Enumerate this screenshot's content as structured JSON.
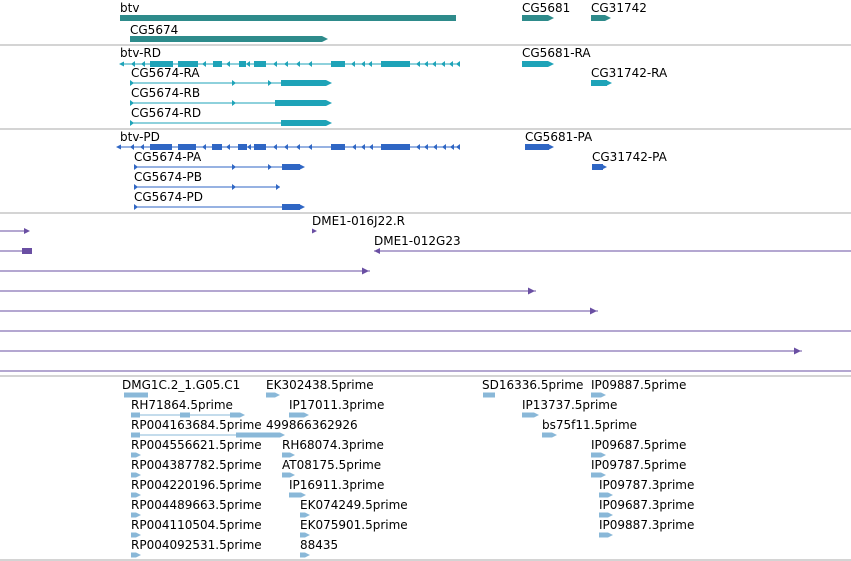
{
  "colors": {
    "gene": "#2e8b8b",
    "transcript": "#1ea3b8",
    "protein": "#2f66c4",
    "cdna": "#6a4fa3",
    "est": "#8ab8d8",
    "divider": "#aaaaaa"
  },
  "tracks": {
    "genes": [
      {
        "label": "btv"
      },
      {
        "label": "CG5674"
      },
      {
        "label": "CG5681"
      },
      {
        "label": "CG31742"
      }
    ],
    "transcripts": [
      {
        "label": "btv-RD"
      },
      {
        "label": "CG5674-RA"
      },
      {
        "label": "CG5674-RB"
      },
      {
        "label": "CG5674-RD"
      },
      {
        "label": "CG5681-RA"
      },
      {
        "label": "CG31742-RA"
      }
    ],
    "proteins": [
      {
        "label": "btv-PD"
      },
      {
        "label": "CG5674-PA"
      },
      {
        "label": "CG5674-PB"
      },
      {
        "label": "CG5674-PD"
      },
      {
        "label": "CG5681-PA"
      },
      {
        "label": "CG31742-PA"
      }
    ],
    "clones": [
      {
        "label": "DME1-016J22.R"
      },
      {
        "label": "DME1-012G23"
      }
    ],
    "ests": [
      {
        "label": "DMG1C.2_1.G05.C1"
      },
      {
        "label": "EK302438.5prime"
      },
      {
        "label": "SD16336.5prime"
      },
      {
        "label": "IP09887.5prime"
      },
      {
        "label": "RH71864.5prime"
      },
      {
        "label": "IP17011.3prime"
      },
      {
        "label": "IP13737.5prime"
      },
      {
        "label": "RP004163684.5prime"
      },
      {
        "label": "499866362926"
      },
      {
        "label": "bs75f11.5prime"
      },
      {
        "label": "RP004556621.5prime"
      },
      {
        "label": "RH68074.3prime"
      },
      {
        "label": "IP09687.5prime"
      },
      {
        "label": "RP004387782.5prime"
      },
      {
        "label": "AT08175.5prime"
      },
      {
        "label": "IP09787.5prime"
      },
      {
        "label": "RP004220196.5prime"
      },
      {
        "label": "IP16911.3prime"
      },
      {
        "label": "IP09787.3prime"
      },
      {
        "label": "RP004489663.5prime"
      },
      {
        "label": "EK074249.5prime"
      },
      {
        "label": "IP09687.3prime"
      },
      {
        "label": "RP004110504.5prime"
      },
      {
        "label": "EK075901.5prime"
      },
      {
        "label": "IP09887.3prime"
      },
      {
        "label": "RP004092531.5prime"
      },
      {
        "label": "88435"
      }
    ]
  }
}
